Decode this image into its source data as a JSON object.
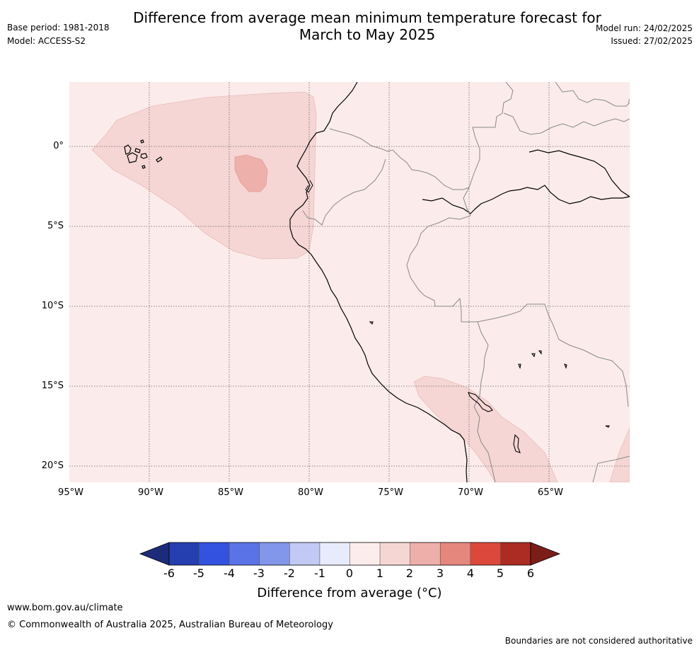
{
  "header": {
    "title_line1": "Difference from average mean minimum temperature forecast for",
    "title_line2": "March to May 2025",
    "base_period": "Base period: 1981-2018",
    "model": "Model: ACCESS-S2",
    "model_run": "Model run: 24/02/2025",
    "issued": "Issued: 27/02/2025"
  },
  "map": {
    "lat_labels": [
      "0°",
      "5°S",
      "10°S",
      "15°S",
      "20°S"
    ],
    "lon_labels": [
      "95°W",
      "90°W",
      "85°W",
      "80°W",
      "75°W",
      "70°W",
      "65°W"
    ],
    "background_color": "#fbeceb",
    "anomaly_1_to_2_color": "#f5d6d4",
    "anomaly_2_to_3_color": "#eeb0ab"
  },
  "colorbar": {
    "ticks": [
      "-6",
      "-5",
      "-4",
      "-3",
      "-2",
      "-1",
      "0",
      "1",
      "2",
      "3",
      "4",
      "5",
      "6"
    ],
    "label": "Difference from average (°C)",
    "colors": [
      "#253fb0",
      "#3352e0",
      "#5a74e8",
      "#8296ea",
      "#c1c9f4",
      "#e8ebfb",
      "#fceceb",
      "#f6d6d3",
      "#eeaea9",
      "#e6877e",
      "#dc493c",
      "#ac2b22"
    ],
    "low_extend_color": "#1c2c7a",
    "high_extend_color": "#7b1e18"
  },
  "footer": {
    "website": "www.bom.gov.au/climate",
    "copyright": "© Commonwealth of Australia 2025, Australian Bureau of Meteorology",
    "disclaimer": "Boundaries are not considered authoritative"
  }
}
